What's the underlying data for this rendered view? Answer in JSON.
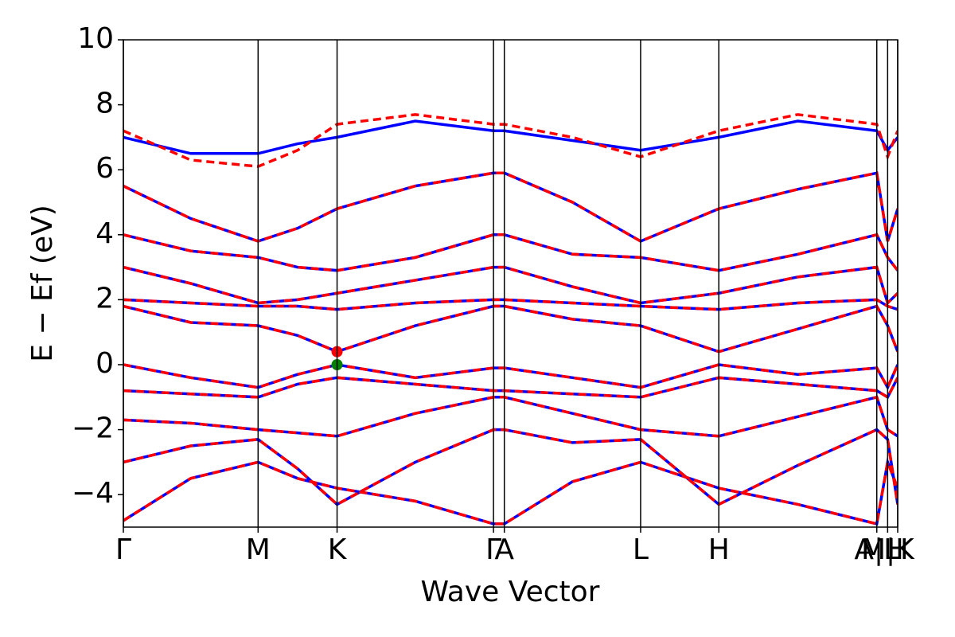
{
  "chart_data": {
    "type": "line",
    "xlabel": "Wave Vector",
    "ylabel": "E − Ef (eV)",
    "xlim": [
      0,
      1
    ],
    "ylim": [
      -5,
      10
    ],
    "yticks": [
      {
        "value": -4,
        "label": "−4"
      },
      {
        "value": -2,
        "label": "−2"
      },
      0,
      2,
      4,
      6,
      8,
      10
    ],
    "xticks": [
      {
        "value": 0,
        "label": "Γ"
      },
      {
        "value": 0.174,
        "label": "M"
      },
      {
        "value": 0.276,
        "label": "K"
      },
      {
        "value": 0.478,
        "label": "Γ"
      },
      {
        "value": 0.492,
        "label": "A"
      },
      {
        "value": 0.668,
        "label": "L"
      },
      {
        "value": 0.769,
        "label": "H"
      },
      {
        "value": 0.973,
        "label": "A|L"
      },
      {
        "value": 0.987,
        "label": "M|K"
      },
      {
        "value": 1.0,
        "label": "H"
      }
    ],
    "x": [
      0,
      0.087,
      0.174,
      0.225,
      0.276,
      0.377,
      0.478,
      0.492,
      0.58,
      0.668,
      0.769,
      0.871,
      0.973,
      0.987,
      1.0
    ],
    "series": [
      {
        "color": "#0000ff",
        "values": [
          1.8,
          1.3,
          1.2,
          0.9,
          0.4,
          1.2,
          1.8,
          1.8,
          1.4,
          1.2,
          0.4,
          1.1,
          1.8,
          1.2,
          0.4
        ]
      },
      {
        "color": "#0000ff",
        "values": [
          2.0,
          1.9,
          1.8,
          1.8,
          1.7,
          1.9,
          2.0,
          2.0,
          1.9,
          1.8,
          1.7,
          1.9,
          2.0,
          1.8,
          1.7
        ]
      },
      {
        "color": "#0000ff",
        "values": [
          3.0,
          2.5,
          1.9,
          2.0,
          2.2,
          2.6,
          3.0,
          3.0,
          2.4,
          1.9,
          2.2,
          2.7,
          3.0,
          1.9,
          2.2
        ]
      },
      {
        "color": "#0000ff",
        "values": [
          4.0,
          3.5,
          3.3,
          3.0,
          2.9,
          3.3,
          4.0,
          4.0,
          3.4,
          3.3,
          2.9,
          3.4,
          4.0,
          3.3,
          2.9
        ]
      },
      {
        "color": "#0000ff",
        "values": [
          5.5,
          4.5,
          3.8,
          4.2,
          4.8,
          5.5,
          5.9,
          5.9,
          5.0,
          3.8,
          4.8,
          5.4,
          5.9,
          3.8,
          4.8
        ]
      },
      {
        "color": "#0000ff",
        "values": [
          7.0,
          6.5,
          6.5,
          6.8,
          7.0,
          7.5,
          7.2,
          7.2,
          6.9,
          6.6,
          7.0,
          7.5,
          7.2,
          6.6,
          7.0
        ]
      },
      {
        "color": "#0000ff",
        "values": [
          0.0,
          -0.4,
          -0.7,
          -0.3,
          0.0,
          -0.4,
          -0.1,
          -0.1,
          -0.4,
          -0.7,
          0.0,
          -0.3,
          -0.1,
          -0.7,
          0.0
        ]
      },
      {
        "color": "#0000ff",
        "values": [
          -0.8,
          -0.9,
          -1.0,
          -0.6,
          -0.4,
          -0.6,
          -0.8,
          -0.8,
          -0.9,
          -1.0,
          -0.4,
          -0.6,
          -0.8,
          -1.0,
          -0.4
        ]
      },
      {
        "color": "#0000ff",
        "values": [
          -1.7,
          -1.8,
          -2.0,
          -2.1,
          -2.2,
          -1.5,
          -1.0,
          -1.0,
          -1.5,
          -2.0,
          -2.2,
          -1.6,
          -1.0,
          -2.0,
          -2.2
        ]
      },
      {
        "color": "#0000ff",
        "values": [
          -3.0,
          -2.5,
          -2.3,
          -3.2,
          -4.3,
          -3.0,
          -2.0,
          -2.0,
          -2.4,
          -2.3,
          -4.3,
          -3.1,
          -2.0,
          -2.3,
          -4.3
        ]
      },
      {
        "color": "#0000ff",
        "values": [
          -4.8,
          -3.5,
          -3.0,
          -3.5,
          -3.8,
          -4.2,
          -4.9,
          -4.9,
          -3.6,
          -3.0,
          -3.8,
          -4.3,
          -4.9,
          -3.0,
          -3.8
        ]
      },
      {
        "color": "#ff0000",
        "dashed": true,
        "values": [
          1.8,
          1.3,
          1.2,
          0.9,
          0.4,
          1.2,
          1.8,
          1.8,
          1.4,
          1.2,
          0.4,
          1.1,
          1.8,
          1.2,
          0.4
        ]
      },
      {
        "color": "#ff0000",
        "dashed": true,
        "values": [
          2.0,
          1.9,
          1.8,
          1.8,
          1.7,
          1.9,
          2.0,
          2.0,
          1.9,
          1.8,
          1.7,
          1.9,
          2.0,
          1.8,
          1.7
        ]
      },
      {
        "color": "#ff0000",
        "dashed": true,
        "values": [
          3.0,
          2.5,
          1.9,
          2.0,
          2.2,
          2.6,
          3.0,
          3.0,
          2.4,
          1.9,
          2.2,
          2.7,
          3.0,
          1.9,
          2.2
        ]
      },
      {
        "color": "#ff0000",
        "dashed": true,
        "values": [
          4.0,
          3.5,
          3.3,
          3.0,
          2.9,
          3.3,
          4.0,
          4.0,
          3.4,
          3.3,
          2.9,
          3.4,
          4.0,
          3.3,
          2.9
        ]
      },
      {
        "color": "#ff0000",
        "dashed": true,
        "values": [
          5.5,
          4.5,
          3.8,
          4.2,
          4.8,
          5.5,
          5.9,
          5.9,
          5.0,
          3.8,
          4.8,
          5.4,
          5.9,
          3.8,
          4.8
        ]
      },
      {
        "color": "#ff0000",
        "dashed": true,
        "values": [
          7.2,
          6.3,
          6.1,
          6.6,
          7.4,
          7.7,
          7.4,
          7.4,
          7.0,
          6.4,
          7.2,
          7.7,
          7.4,
          6.4,
          7.2
        ]
      },
      {
        "color": "#ff0000",
        "dashed": true,
        "values": [
          0.0,
          -0.4,
          -0.7,
          -0.3,
          0.0,
          -0.4,
          -0.1,
          -0.1,
          -0.4,
          -0.7,
          0.0,
          -0.3,
          -0.1,
          -0.7,
          0.0
        ]
      },
      {
        "color": "#ff0000",
        "dashed": true,
        "values": [
          -0.8,
          -0.9,
          -1.0,
          -0.6,
          -0.4,
          -0.6,
          -0.8,
          -0.8,
          -0.9,
          -1.0,
          -0.4,
          -0.6,
          -0.8,
          -1.0,
          -0.4
        ]
      },
      {
        "color": "#ff0000",
        "dashed": true,
        "values": [
          -1.7,
          -1.8,
          -2.0,
          -2.1,
          -2.2,
          -1.5,
          -1.0,
          -1.0,
          -1.5,
          -2.0,
          -2.2,
          -1.6,
          -1.0,
          -2.0,
          -2.2
        ]
      },
      {
        "color": "#ff0000",
        "dashed": true,
        "values": [
          -3.0,
          -2.5,
          -2.3,
          -3.2,
          -4.3,
          -3.0,
          -2.0,
          -2.0,
          -2.4,
          -2.3,
          -4.3,
          -3.1,
          -2.0,
          -2.3,
          -4.3
        ]
      },
      {
        "color": "#ff0000",
        "dashed": true,
        "values": [
          -4.8,
          -3.5,
          -3.0,
          -3.5,
          -3.8,
          -4.2,
          -4.9,
          -4.9,
          -3.6,
          -3.0,
          -3.8,
          -4.3,
          -4.9,
          -3.0,
          -3.8
        ]
      }
    ],
    "markers": [
      {
        "x": 0.276,
        "y": 0.4,
        "color": "#ff0000"
      },
      {
        "x": 0.276,
        "y": 0.0,
        "color": "#008000"
      }
    ]
  }
}
